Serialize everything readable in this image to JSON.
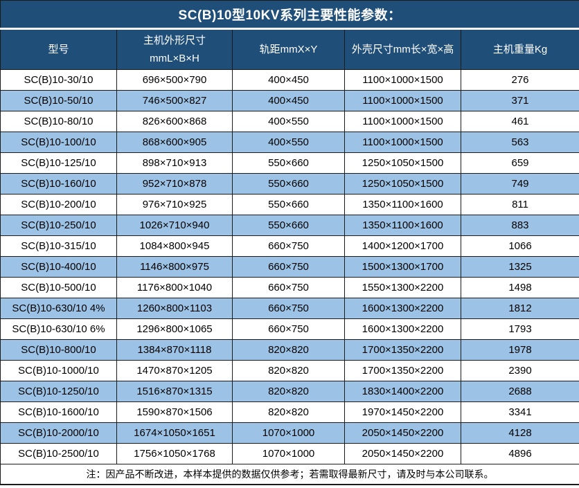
{
  "title": "SC(B)10型10KV系列主要性能参数：",
  "table": {
    "columns": [
      {
        "label": "型号"
      },
      {
        "label_line1": "主机外形尺寸",
        "label_line2": "mmL×B×H"
      },
      {
        "label": "轨距mmX×Y"
      },
      {
        "label": "外壳尺寸mm长×宽×高"
      },
      {
        "label": "主机重量Kg"
      }
    ],
    "rows": [
      {
        "model": "SC(B)10-30/10",
        "dims": "696×500×790",
        "track": "400×450",
        "shell": "1100×1000×1500",
        "weight": "276"
      },
      {
        "model": "SC(B)10-50/10",
        "dims": "746×500×827",
        "track": "400×450",
        "shell": "1100×1000×1500",
        "weight": "371"
      },
      {
        "model": "SC(B)10-80/10",
        "dims": "826×600×868",
        "track": "400×550",
        "shell": "1100×1000×1500",
        "weight": "461"
      },
      {
        "model": "SC(B)10-100/10",
        "dims": "868×600×905",
        "track": "400×550",
        "shell": "1100×1000×1500",
        "weight": "563"
      },
      {
        "model": "SC(B)10-125/10",
        "dims": "898×710×913",
        "track": "550×660",
        "shell": "1250×1050×1500",
        "weight": "659"
      },
      {
        "model": "SC(B)10-160/10",
        "dims": "952×710×878",
        "track": "550×660",
        "shell": "1250×1050×1500",
        "weight": "749"
      },
      {
        "model": "SC(B)10-200/10",
        "dims": "976×710×925",
        "track": "550×660",
        "shell": "1350×1100×1600",
        "weight": "811"
      },
      {
        "model": "SC(B)10-250/10",
        "dims": "1026×710×940",
        "track": "550×660",
        "shell": "1350×1100×1600",
        "weight": "883"
      },
      {
        "model": "SC(B)10-315/10",
        "dims": "1084×800×945",
        "track": "660×750",
        "shell": "1400×1200×1700",
        "weight": "1066"
      },
      {
        "model": "SC(B)10-400/10",
        "dims": "1146×800×975",
        "track": "660×750",
        "shell": "1500×1300×1700",
        "weight": "1325"
      },
      {
        "model": "SC(B)10-500/10",
        "dims": "1176×800×1040",
        "track": "660×750",
        "shell": "1550×1300×2200",
        "weight": "1498"
      },
      {
        "model": "SC(B)10-630/10 4%",
        "dims": "1260×800×1103",
        "track": "660×750",
        "shell": "1600×1300×2200",
        "weight": "1812"
      },
      {
        "model": "SC(B)10-630/10 6%",
        "dims": "1296×800×1065",
        "track": "660×750",
        "shell": "1600×1300×2200",
        "weight": "1793"
      },
      {
        "model": "SC(B)10-800/10",
        "dims": "1384×870×1118",
        "track": "820×820",
        "shell": "1700×1350×2200",
        "weight": "1978"
      },
      {
        "model": "SC(B)10-1000/10",
        "dims": "1470×870×1205",
        "track": "820×820",
        "shell": "1700×1350×2200",
        "weight": "2390"
      },
      {
        "model": "SC(B)10-1250/10",
        "dims": "1516×870×1315",
        "track": "820×820",
        "shell": "1830×1400×2200",
        "weight": "2688"
      },
      {
        "model": "SC(B)10-1600/10",
        "dims": "1590×870×1506",
        "track": "820×820",
        "shell": "1970×1450×2200",
        "weight": "3341"
      },
      {
        "model": "SC(B)10-2000/10",
        "dims": "1674×1050×1651",
        "track": "1070×1000",
        "shell": "2050×1450×2200",
        "weight": "4128"
      },
      {
        "model": "SC(B)10-2500/10",
        "dims": "1756×1050×1768",
        "track": "1070×1000",
        "shell": "2050×1450×2200",
        "weight": "4896"
      }
    ]
  },
  "footer": {
    "note": "注：因产品不断改进，本样本提供的数据仅供参考；若需取得最新尺寸，请及时与本公司联系。"
  },
  "colors": {
    "header_bg": "#1f4e79",
    "header_text": "#ffffff",
    "row_bg": "#ffffff",
    "row_alt_bg": "#9cc2e5",
    "border": "#1a1a1a",
    "text": "#000000"
  }
}
